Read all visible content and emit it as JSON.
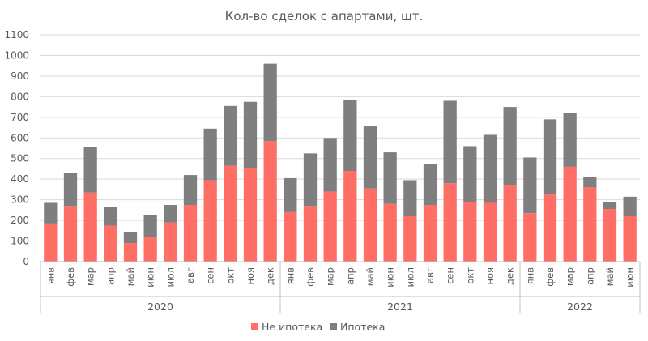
{
  "chart_data": {
    "type": "bar",
    "stacked": true,
    "title": "Кол-во сделок с апартами, шт.",
    "xlabel": "",
    "ylabel": "",
    "ylim": [
      0,
      1100
    ],
    "yticks": [
      0,
      100,
      200,
      300,
      400,
      500,
      600,
      700,
      800,
      900,
      1000,
      1100
    ],
    "grid": true,
    "legend_position": "bottom",
    "categories": [
      "янв",
      "фев",
      "мар",
      "апр",
      "май",
      "июн",
      "июл",
      "авг",
      "сен",
      "окт",
      "ноя",
      "дек",
      "янв",
      "фев",
      "мар",
      "апр",
      "май",
      "июн",
      "июл",
      "авг",
      "сен",
      "окт",
      "ноя",
      "дек",
      "янв",
      "фев",
      "мар",
      "апр",
      "май",
      "июн"
    ],
    "groups": [
      {
        "label": "2020",
        "start": 0,
        "count": 12
      },
      {
        "label": "2021",
        "start": 12,
        "count": 12
      },
      {
        "label": "2022",
        "start": 24,
        "count": 6
      }
    ],
    "series": [
      {
        "name": "Не ипотека",
        "color": "#ff6f65",
        "values": [
          185,
          270,
          335,
          175,
          90,
          120,
          190,
          275,
          395,
          465,
          455,
          585,
          240,
          270,
          340,
          440,
          355,
          280,
          220,
          275,
          380,
          290,
          285,
          370,
          235,
          325,
          460,
          360,
          255,
          220
        ]
      },
      {
        "name": "Ипотека",
        "color": "#7f7f7f",
        "values": [
          100,
          160,
          220,
          90,
          55,
          105,
          85,
          145,
          250,
          290,
          320,
          375,
          165,
          255,
          260,
          345,
          305,
          250,
          175,
          200,
          400,
          270,
          330,
          380,
          270,
          365,
          260,
          50,
          35,
          95
        ]
      }
    ]
  }
}
